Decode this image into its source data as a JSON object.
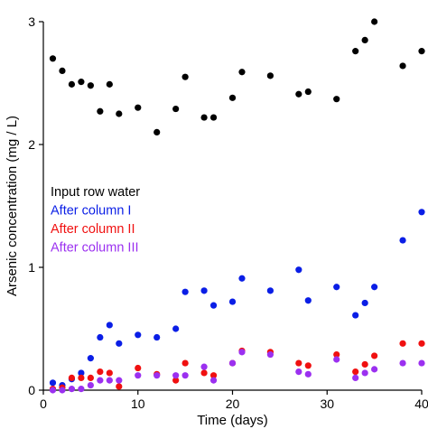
{
  "chart_data": {
    "type": "scatter",
    "xlabel": "Time (days)",
    "ylabel": "Arsenic concentration (mg / L)",
    "xlim": [
      0,
      40
    ],
    "ylim": [
      0,
      3
    ],
    "xticks": [
      0,
      10,
      20,
      30,
      40
    ],
    "yticks": [
      0,
      1,
      2,
      3
    ],
    "grid": false,
    "legend_position": "left-middle",
    "series": [
      {
        "name": "Input row water",
        "color": "#000000",
        "x": [
          1,
          2,
          3,
          4,
          5,
          6,
          7,
          8,
          10,
          12,
          14,
          15,
          17,
          18,
          20,
          21,
          24,
          27,
          28,
          31,
          33,
          34,
          35,
          38,
          40
        ],
        "y": [
          2.7,
          2.6,
          2.49,
          2.51,
          2.48,
          2.27,
          2.49,
          2.25,
          2.3,
          2.1,
          2.29,
          2.55,
          2.22,
          2.22,
          2.38,
          2.59,
          2.56,
          2.41,
          2.43,
          2.37,
          2.76,
          2.85,
          3.0,
          2.64,
          2.76
        ]
      },
      {
        "name": "After column I",
        "color": "#0a1ee6",
        "x": [
          1,
          2,
          3,
          4,
          5,
          6,
          7,
          8,
          10,
          12,
          14,
          15,
          17,
          18,
          20,
          21,
          24,
          27,
          28,
          31,
          33,
          34,
          35,
          38,
          40
        ],
        "y": [
          0.06,
          0.04,
          0.09,
          0.14,
          0.26,
          0.43,
          0.53,
          0.38,
          0.45,
          0.43,
          0.5,
          0.8,
          0.81,
          0.69,
          0.72,
          0.91,
          0.81,
          0.98,
          0.73,
          0.84,
          0.61,
          0.71,
          0.84,
          1.22,
          1.45
        ]
      },
      {
        "name": "After column II",
        "color": "#f01010",
        "x": [
          1,
          2,
          3,
          4,
          5,
          6,
          7,
          8,
          10,
          12,
          14,
          15,
          17,
          18,
          20,
          21,
          24,
          27,
          28,
          31,
          33,
          34,
          35,
          38,
          40
        ],
        "y": [
          0.01,
          0.02,
          0.1,
          0.1,
          0.1,
          0.15,
          0.14,
          0.03,
          0.18,
          0.13,
          0.08,
          0.22,
          0.14,
          0.12,
          0.22,
          0.32,
          0.31,
          0.22,
          0.2,
          0.29,
          0.15,
          0.21,
          0.28,
          0.38,
          0.38
        ]
      },
      {
        "name": "After column III",
        "color": "#9b30f0",
        "x": [
          1,
          2,
          3,
          4,
          5,
          6,
          7,
          8,
          10,
          12,
          14,
          15,
          17,
          18,
          20,
          21,
          24,
          27,
          28,
          31,
          33,
          34,
          35,
          38,
          40
        ],
        "y": [
          0.0,
          0.0,
          0.01,
          0.01,
          0.04,
          0.08,
          0.08,
          0.08,
          0.12,
          0.12,
          0.12,
          0.12,
          0.19,
          0.08,
          0.22,
          0.31,
          0.29,
          0.15,
          0.13,
          0.25,
          0.1,
          0.14,
          0.17,
          0.22,
          0.22
        ]
      }
    ]
  }
}
